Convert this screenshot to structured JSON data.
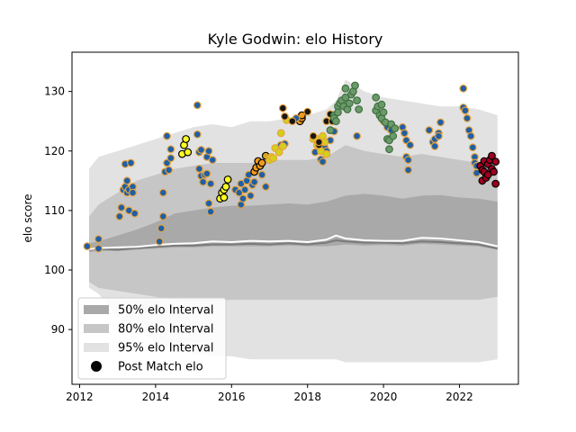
{
  "chart_data": {
    "type": "scatter",
    "title": "Kyle Godwin: elo History",
    "xlabel": "",
    "ylabel": "elo score",
    "xlim": [
      2011.8,
      2023.55
    ],
    "ylim": [
      80.8,
      136.6
    ],
    "xticks": [
      2012,
      2014,
      2016,
      2018,
      2020,
      2022
    ],
    "yticks": [
      90,
      100,
      110,
      120,
      130
    ],
    "grid": false,
    "legend_position": "lower-left",
    "legend": [
      {
        "label": "50% elo Interval",
        "kind": "band",
        "color": "#a9a9a9"
      },
      {
        "label": "80% elo Interval",
        "kind": "band",
        "color": "#c6c6c6"
      },
      {
        "label": "95% elo Interval",
        "kind": "band",
        "color": "#e2e2e2"
      },
      {
        "label": "Post Match elo",
        "kind": "marker",
        "color": "#000000"
      }
    ],
    "bands": {
      "x": [
        2012.25,
        2012.5,
        2013.0,
        2013.5,
        2014.0,
        2014.5,
        2015.0,
        2015.5,
        2016.0,
        2016.5,
        2017.0,
        2017.5,
        2018.0,
        2018.5,
        2018.75,
        2019.0,
        2019.5,
        2020.0,
        2020.5,
        2021.0,
        2021.5,
        2022.0,
        2022.5,
        2023.0
      ],
      "p95_upper": [
        117,
        119,
        120,
        121,
        122,
        123,
        124,
        124.5,
        124,
        125,
        125,
        125.5,
        126,
        127,
        128.5,
        132,
        130,
        129,
        128.5,
        128,
        127.5,
        127.5,
        127,
        126
      ],
      "p80_upper": [
        109,
        111,
        113,
        115,
        116,
        117,
        117.5,
        118,
        118,
        118,
        118.5,
        118.5,
        118.5,
        119,
        120,
        121,
        120,
        119.5,
        119,
        119.5,
        119,
        118.5,
        118,
        117
      ],
      "p50_upper": [
        104.5,
        104.8,
        105.8,
        106.8,
        108,
        109.5,
        110,
        110.5,
        110.8,
        110.8,
        111,
        111.2,
        111,
        111.5,
        112,
        112.5,
        112.8,
        112.5,
        112,
        112.5,
        112.6,
        112.2,
        112,
        111.5
      ],
      "p50_lower": [
        103,
        103.2,
        103.2,
        103.4,
        103.6,
        103.8,
        103.8,
        104,
        104,
        104,
        104,
        104.1,
        104,
        104,
        104.1,
        104.3,
        104.1,
        104.2,
        104.1,
        104.4,
        104.3,
        104.1,
        104,
        103.4
      ],
      "p80_lower": [
        98,
        97,
        96.5,
        96,
        95.5,
        95,
        94.8,
        94.8,
        95,
        95,
        95,
        95,
        95,
        95,
        95,
        95,
        95,
        95,
        95,
        95,
        95,
        95,
        95,
        95.5
      ],
      "p95_lower": [
        97,
        96,
        92,
        90,
        88,
        87,
        86,
        85.5,
        85.5,
        85,
        85,
        85,
        85,
        85,
        85,
        84.5,
        84.5,
        84.5,
        84.5,
        84.5,
        84.5,
        84.5,
        84.5,
        85
      ],
      "median": [
        103.5,
        103.7,
        103.8,
        103.9,
        104.2,
        104.4,
        104.5,
        104.8,
        104.7,
        104.9,
        104.8,
        104.9,
        104.7,
        105.1,
        105.8,
        105.3,
        105.0,
        104.9,
        104.9,
        105.4,
        105.3,
        105.0,
        104.7,
        104.0
      ],
      "p50_line": [
        103.4,
        103.6,
        103.4,
        103.7,
        103.9,
        104.1,
        104.1,
        104.3,
        104.3,
        104.4,
        104.3,
        104.5,
        104.3,
        104.6,
        105.0,
        104.8,
        104.6,
        104.6,
        104.5,
        104.8,
        104.7,
        104.5,
        104.3,
        103.6
      ]
    },
    "series": [
      {
        "color": "#1f5fa6",
        "edge": "#e8a33a",
        "points": [
          [
            2012.2,
            104.0
          ],
          [
            2012.5,
            103.6
          ],
          [
            2012.5,
            105.2
          ],
          [
            2013.05,
            109.0
          ],
          [
            2013.1,
            110.5
          ],
          [
            2013.15,
            113.5
          ],
          [
            2013.2,
            114.0
          ],
          [
            2013.2,
            117.8
          ],
          [
            2013.25,
            113.0
          ],
          [
            2013.25,
            115.0
          ],
          [
            2013.3,
            110.0
          ],
          [
            2013.3,
            113.5
          ],
          [
            2013.35,
            118.0
          ],
          [
            2013.4,
            114.0
          ],
          [
            2013.4,
            113.0
          ],
          [
            2013.45,
            109.5
          ],
          [
            2014.1,
            104.8
          ],
          [
            2014.15,
            107.0
          ],
          [
            2014.2,
            109.0
          ],
          [
            2014.2,
            113.0
          ],
          [
            2014.25,
            116.5
          ],
          [
            2014.3,
            122.5
          ],
          [
            2014.3,
            118.0
          ],
          [
            2014.35,
            116.8
          ],
          [
            2014.4,
            120.3
          ],
          [
            2014.4,
            118.8
          ],
          [
            2015.1,
            127.7
          ],
          [
            2015.1,
            122.8
          ],
          [
            2015.15,
            119.8
          ],
          [
            2015.15,
            117.0
          ],
          [
            2015.2,
            120.2
          ],
          [
            2015.2,
            115.8
          ],
          [
            2015.25,
            114.8
          ],
          [
            2015.3,
            116.0
          ],
          [
            2015.35,
            119.0
          ],
          [
            2015.35,
            116.2
          ],
          [
            2015.4,
            120.0
          ],
          [
            2015.4,
            111.2
          ],
          [
            2015.45,
            109.8
          ],
          [
            2015.45,
            114.5
          ],
          [
            2015.5,
            118.5
          ],
          [
            2016.1,
            113.5
          ],
          [
            2016.2,
            113.0
          ],
          [
            2016.25,
            111.0
          ],
          [
            2016.25,
            114.5
          ],
          [
            2016.3,
            112.0
          ],
          [
            2016.35,
            113.5
          ],
          [
            2016.4,
            115.0
          ],
          [
            2016.45,
            116.0
          ],
          [
            2016.5,
            112.5
          ],
          [
            2022.1,
            130.5
          ]
        ]
      },
      {
        "color": "#ffff22",
        "edge": "#000000",
        "points": [
          [
            2014.7,
            119.5
          ],
          [
            2014.75,
            121.0
          ],
          [
            2014.8,
            122.0
          ],
          [
            2014.85,
            119.8
          ],
          [
            2015.7,
            112.0
          ],
          [
            2015.75,
            113.0
          ],
          [
            2015.8,
            113.5
          ],
          [
            2015.8,
            112.2
          ],
          [
            2015.85,
            114.0
          ],
          [
            2015.9,
            115.2
          ]
        ]
      },
      {
        "color": "#f29a1c",
        "edge": "#000000",
        "points": [
          [
            2016.6,
            116.5
          ],
          [
            2016.65,
            117.2
          ],
          [
            2016.7,
            118.3
          ],
          [
            2016.75,
            117.5
          ],
          [
            2016.8,
            118.0
          ],
          [
            2017.8,
            125.0
          ],
          [
            2017.85,
            125.5
          ],
          [
            2017.85,
            126.0
          ]
        ]
      },
      {
        "color": "#d4aa1a",
        "edge": "#000000",
        "points": [
          [
            2016.9,
            119.2
          ]
        ]
      },
      {
        "color": "#1f5fa6",
        "edge": "#e8a33a",
        "points": [
          [
            2016.55,
            114.3
          ],
          [
            2016.6,
            114.8
          ],
          [
            2016.8,
            116.0
          ],
          [
            2016.9,
            114.0
          ],
          [
            2017.2,
            120.5
          ],
          [
            2017.3,
            121.0
          ],
          [
            2017.4,
            121.2
          ],
          [
            2017.7,
            125.5
          ],
          [
            2018.2,
            119.8
          ],
          [
            2018.35,
            118.6
          ],
          [
            2018.4,
            118.2
          ],
          [
            2018.45,
            120.6
          ],
          [
            2018.5,
            120.0
          ],
          [
            2018.6,
            121.8
          ],
          [
            2018.7,
            123.3
          ],
          [
            2019.3,
            122.5
          ],
          [
            2020.0,
            125.0
          ],
          [
            2020.1,
            124.0
          ],
          [
            2020.2,
            123.5
          ],
          [
            2020.5,
            124.0
          ],
          [
            2020.55,
            123.0
          ],
          [
            2020.6,
            121.8
          ],
          [
            2020.6,
            119.0
          ],
          [
            2020.65,
            118.5
          ],
          [
            2020.65,
            116.8
          ],
          [
            2020.7,
            121.0
          ],
          [
            2021.2,
            123.5
          ],
          [
            2021.3,
            121.5
          ],
          [
            2021.35,
            122.0
          ],
          [
            2021.35,
            120.8
          ],
          [
            2021.45,
            123.0
          ],
          [
            2021.45,
            122.5
          ],
          [
            2021.5,
            124.8
          ],
          [
            2022.1,
            127.3
          ],
          [
            2022.15,
            126.8
          ],
          [
            2022.2,
            125.5
          ],
          [
            2022.25,
            123.5
          ],
          [
            2022.3,
            122.5
          ],
          [
            2022.35,
            120.6
          ],
          [
            2022.4,
            119.0
          ],
          [
            2022.4,
            118.0
          ],
          [
            2022.45,
            117.5
          ],
          [
            2022.45,
            116.3
          ]
        ]
      },
      {
        "color": "#d4d01a",
        "edge": "#e8a33a",
        "points": [
          [
            2017.0,
            118.5
          ],
          [
            2017.05,
            119.0
          ],
          [
            2017.1,
            118.8
          ],
          [
            2017.15,
            120.5
          ],
          [
            2017.25,
            119.8
          ],
          [
            2017.3,
            123.0
          ],
          [
            2017.35,
            120.8
          ],
          [
            2017.45,
            125.2
          ],
          [
            2018.15,
            122.0
          ],
          [
            2018.25,
            121.0
          ],
          [
            2018.25,
            122.0
          ],
          [
            2018.3,
            121.5
          ],
          [
            2018.35,
            120.0
          ],
          [
            2018.4,
            122.5
          ],
          [
            2018.45,
            121.5
          ],
          [
            2018.5,
            119.5
          ]
        ]
      },
      {
        "color": "#161616",
        "edge": "#e8a33a",
        "points": [
          [
            2017.35,
            127.2
          ],
          [
            2017.4,
            125.8
          ],
          [
            2017.6,
            125.0
          ],
          [
            2018.0,
            126.6
          ],
          [
            2018.15,
            122.5
          ],
          [
            2018.3,
            121.0
          ],
          [
            2018.3,
            121.5
          ],
          [
            2018.5,
            125.0
          ],
          [
            2018.6,
            126.2
          ],
          [
            2018.65,
            125.0
          ]
        ]
      },
      {
        "color": "#6a9a6a",
        "edge": "#3f6e3f",
        "points": [
          [
            2018.6,
            123.5
          ],
          [
            2018.7,
            126.0
          ],
          [
            2018.7,
            125.5
          ],
          [
            2018.75,
            125.0
          ],
          [
            2018.8,
            127.5
          ],
          [
            2018.8,
            126.5
          ],
          [
            2018.85,
            128.0
          ],
          [
            2018.9,
            128.5
          ],
          [
            2018.95,
            127.5
          ],
          [
            2019.0,
            129.0
          ],
          [
            2019.0,
            130.5
          ],
          [
            2019.05,
            127.0
          ],
          [
            2019.1,
            128.0
          ],
          [
            2019.15,
            129.5
          ],
          [
            2019.2,
            130.0
          ],
          [
            2019.25,
            131.0
          ],
          [
            2019.3,
            128.5
          ],
          [
            2019.35,
            127.0
          ],
          [
            2019.8,
            129.0
          ],
          [
            2019.8,
            126.8
          ],
          [
            2019.85,
            127.5
          ],
          [
            2019.9,
            126.0
          ],
          [
            2019.95,
            125.5
          ],
          [
            2020.0,
            126.5
          ],
          [
            2020.05,
            124.8
          ],
          [
            2020.1,
            122.0
          ],
          [
            2020.15,
            121.8
          ],
          [
            2020.15,
            120.3
          ],
          [
            2020.2,
            124.5
          ],
          [
            2020.25,
            122.5
          ],
          [
            2020.3,
            123.8
          ],
          [
            2019.95,
            127.8
          ]
        ]
      },
      {
        "color": "#a00020",
        "edge": "#000000",
        "points": [
          [
            2022.55,
            117.5
          ],
          [
            2022.6,
            116.8
          ],
          [
            2022.6,
            115.0
          ],
          [
            2022.65,
            116.5
          ],
          [
            2022.65,
            118.3
          ],
          [
            2022.7,
            115.5
          ],
          [
            2022.75,
            117.8
          ],
          [
            2022.75,
            116.0
          ],
          [
            2022.8,
            118.5
          ],
          [
            2022.85,
            119.2
          ],
          [
            2022.85,
            117.0
          ],
          [
            2022.9,
            116.5
          ],
          [
            2022.95,
            118.2
          ],
          [
            2022.95,
            114.5
          ]
        ]
      }
    ]
  }
}
